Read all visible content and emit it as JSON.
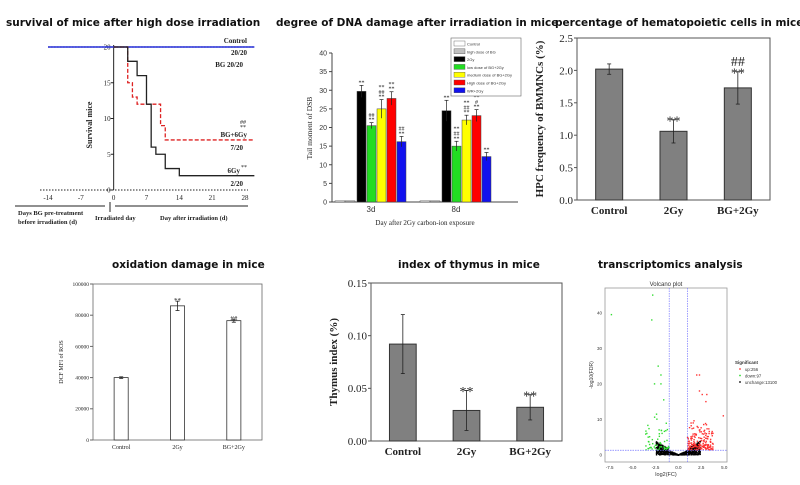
{
  "panels": {
    "survival": {
      "title": "survival of mice after high dose irradiation"
    },
    "dna": {
      "title": "degree of DNA damage after irradiation in mice"
    },
    "hpc": {
      "title": "percentage of hematopoietic cells in mice"
    },
    "ros": {
      "title": "oxidation damage in mice"
    },
    "thymus": {
      "title": "index of thymus in mice"
    },
    "volcano": {
      "title": "transcriptomics analysis"
    }
  },
  "chart_data": [
    {
      "id": "survival",
      "type": "line",
      "ylabel": "Survival mice",
      "xlim": [
        -14,
        30
      ],
      "ylim": [
        0,
        20
      ],
      "xticks": [
        -14,
        -7,
        0,
        7,
        14,
        21,
        28
      ],
      "yticks": [
        0,
        5,
        10,
        15,
        20
      ],
      "xlabels": [
        "Days BG pre-treatment",
        "before irradiation (d)",
        "Irradiated day",
        "Day after irradiation (d)"
      ],
      "series": [
        {
          "name": "Control",
          "label2": "20/20",
          "color": "#cc2222",
          "style": "dotted",
          "x": [
            -14,
            30
          ],
          "y": [
            20,
            20
          ]
        },
        {
          "name": "BG 20/20",
          "color": "#2233dd",
          "style": "solid",
          "x": [
            -14,
            30
          ],
          "y": [
            20,
            20
          ]
        },
        {
          "name": "BG+6Gy",
          "label2": "7/20",
          "sig": "##\n**",
          "color": "#dd2222",
          "style": "dashed",
          "x": [
            0,
            3,
            4,
            5,
            10,
            11,
            30
          ],
          "y": [
            20,
            15,
            13,
            12,
            9,
            7,
            7
          ]
        },
        {
          "name": "6Gy",
          "label2": "2/20",
          "sig": "**",
          "color": "#222222",
          "style": "solid",
          "x": [
            0,
            3,
            5,
            7,
            8,
            9,
            11,
            14,
            30
          ],
          "y": [
            20,
            18,
            16,
            12,
            6,
            5,
            3,
            2,
            2
          ]
        }
      ]
    },
    {
      "id": "dna",
      "type": "bar",
      "ylabel": "Tail moment of DSB",
      "xlabel": "Day after 2Gy carbon-ion exposure",
      "ylim": [
        0,
        40
      ],
      "yticks": [
        0,
        5,
        10,
        15,
        20,
        25,
        30,
        35,
        40
      ],
      "categories": [
        "3d",
        "8d"
      ],
      "series": [
        {
          "name": "Control",
          "color": "#ffffff",
          "values": [
            0.3,
            0.3
          ],
          "err": [
            0,
            0
          ],
          "sig": [
            "",
            ""
          ]
        },
        {
          "name": "high dose of BG",
          "color": "#c0c0c0",
          "values": [
            0.3,
            0.3
          ],
          "err": [
            0,
            0
          ],
          "sig": [
            "",
            ""
          ]
        },
        {
          "name": "2Gy",
          "color": "#000000",
          "values": [
            29.7,
            24.5
          ],
          "err": [
            1.6,
            2.8
          ],
          "sig": [
            "**",
            "**"
          ]
        },
        {
          "name": "low dose of BG+2Gy",
          "color": "#22dd22",
          "values": [
            20.5,
            15.0
          ],
          "err": [
            0.8,
            1.3
          ],
          "sig": [
            "##\n**",
            "**\n##\n**"
          ]
        },
        {
          "name": "medium dose of BG+2Gy",
          "color": "#ffff00",
          "values": [
            25.0,
            22.0
          ],
          "err": [
            2.5,
            1.3
          ],
          "sig": [
            "**\n##\n**",
            "**\n##\n**"
          ]
        },
        {
          "name": "High dose of BG+2Gy",
          "color": "#ff0000",
          "values": [
            27.8,
            23.2
          ],
          "err": [
            1.8,
            1.6
          ],
          "sig": [
            "**\n**",
            "**\n#\n**"
          ]
        },
        {
          "name": "WR+2Gy",
          "color": "#1111ee",
          "values": [
            16.2,
            12.2
          ],
          "err": [
            1.4,
            1.1
          ],
          "sig": [
            "##\n**",
            "**"
          ]
        }
      ]
    },
    {
      "id": "hpc",
      "type": "bar",
      "ylabel": "HPC frequency of BMMNCs (%)",
      "ylim": [
        0,
        2.5
      ],
      "yticks": [
        "0.0",
        "0.5",
        "1.0",
        "1.5",
        "2.0",
        "2.5"
      ],
      "categories": [
        "Control",
        "2Gy",
        "BG+2Gy"
      ],
      "values": [
        2.02,
        1.06,
        1.73
      ],
      "err": [
        0.08,
        0.18,
        0.25
      ],
      "sig": [
        "",
        "**",
        "##\n**"
      ],
      "color": "#808080"
    },
    {
      "id": "ros",
      "type": "bar",
      "ylabel": "DCF MFI of ROS",
      "ylim": [
        0,
        100000
      ],
      "yticks": [
        "0",
        "20000",
        "40000",
        "60000",
        "80000",
        "100000"
      ],
      "categories": [
        "Control",
        "2Gy",
        "BG+2Gy"
      ],
      "values": [
        40000,
        86000,
        76500
      ],
      "err": [
        500,
        3000,
        1000
      ],
      "sig": [
        "",
        "**",
        "##"
      ],
      "color": "#ffffff"
    },
    {
      "id": "thymus",
      "type": "bar",
      "ylabel": "Thymus index (%)",
      "ylim": [
        0,
        0.15
      ],
      "yticks": [
        "0.00",
        "0.05",
        "0.10",
        "0.15"
      ],
      "categories": [
        "Control",
        "2Gy",
        "BG+2Gy"
      ],
      "values": [
        0.092,
        0.029,
        0.032
      ],
      "err": [
        0.028,
        0.019,
        0.012
      ],
      "sig": [
        "",
        "**",
        "**"
      ],
      "color": "#808080"
    },
    {
      "id": "volcano",
      "type": "scatter",
      "title": "Volcano plot",
      "xlabel": "log2(FC)",
      "ylabel": "-log10(FDR)",
      "xlim": [
        -8,
        5.3
      ],
      "ylim": [
        -2,
        47
      ],
      "xticks": [
        "-7.5",
        "-5.0",
        "-2.5",
        "0.0",
        "2.5",
        "5.0"
      ],
      "yticks": [
        "0",
        "10",
        "20",
        "30",
        "40"
      ],
      "thresholds": {
        "x": [
          -1,
          1
        ],
        "y": 1.3
      },
      "legend": {
        "title": "Significant",
        "entries": [
          {
            "label": "up:256",
            "color": "#ff3333"
          },
          {
            "label": "down:97",
            "color": "#33dd33"
          },
          {
            "label": "unchange:13100",
            "color": "#000000"
          }
        ]
      },
      "highlight_points": {
        "down": [
          [
            -7.3,
            39.5
          ],
          [
            -2.8,
            45
          ],
          [
            -2.9,
            38
          ],
          [
            -2.2,
            25
          ],
          [
            -1.9,
            22.5
          ],
          [
            -2.6,
            20
          ],
          [
            -1.9,
            20
          ],
          [
            -1.6,
            15.5
          ]
        ],
        "up": [
          [
            2.0,
            22.5
          ],
          [
            2.3,
            22.5
          ],
          [
            2.6,
            17
          ],
          [
            3.1,
            17
          ],
          [
            3.0,
            15
          ],
          [
            2.3,
            18
          ],
          [
            4.9,
            11
          ]
        ]
      }
    }
  ]
}
